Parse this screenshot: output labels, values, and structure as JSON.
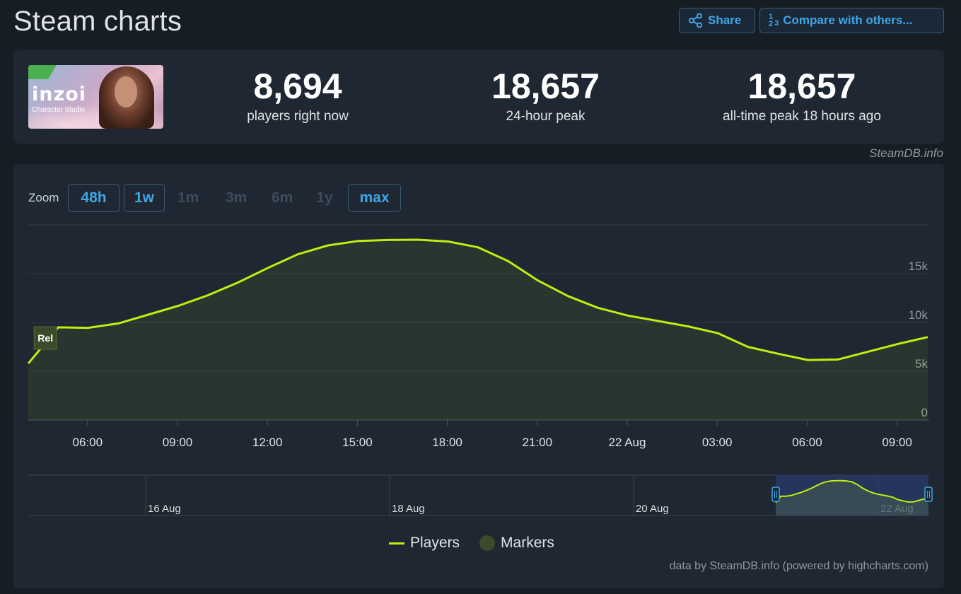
{
  "header": {
    "title": "Steam charts",
    "share_label": "Share",
    "compare_label": "Compare with others...",
    "compare_icon_top": "1",
    "compare_icon_bottom": "2",
    "compare_icon_side": "3"
  },
  "game": {
    "logo_text": "inzoi",
    "subtitle": "Character Studio"
  },
  "stats": [
    {
      "value": "8,694",
      "label": "players right now"
    },
    {
      "value": "18,657",
      "label": "24-hour peak"
    },
    {
      "value": "18,657",
      "label": "all-time peak 18 hours ago"
    }
  ],
  "credit_top": "SteamDB.info",
  "zoom": {
    "label": "Zoom",
    "buttons": [
      {
        "label": "48h",
        "state": "active"
      },
      {
        "label": "1w",
        "state": "active"
      },
      {
        "label": "1m",
        "state": "inactive"
      },
      {
        "label": "3m",
        "state": "inactive"
      },
      {
        "label": "6m",
        "state": "inactive"
      },
      {
        "label": "1y",
        "state": "inactive"
      },
      {
        "label": "max",
        "state": "active"
      }
    ]
  },
  "legend": {
    "players": "Players",
    "markers": "Markers"
  },
  "credit_bottom": "data by SteamDB.info (powered by highcharts.com)",
  "colors": {
    "line": "#beee11",
    "accent": "#3ea6e6",
    "marker": "#3c4a2c",
    "navigator_window": "#2a3b6e"
  },
  "chart_data": {
    "type": "line",
    "series": [
      {
        "name": "Players",
        "x": [
          "04:00",
          "05:00",
          "06:00",
          "07:00",
          "08:00",
          "09:00",
          "10:00",
          "11:00",
          "12:00",
          "13:00",
          "14:00",
          "15:00",
          "16:00",
          "17:00",
          "18:00",
          "19:00",
          "20:00",
          "21:00",
          "22:00",
          "23:00",
          "00:00",
          "01:00",
          "02:00",
          "03:00",
          "04:00",
          "05:00",
          "06:00",
          "07:00",
          "08:00",
          "09:00",
          "10:00"
        ],
        "values": [
          5800,
          9500,
          9450,
          9900,
          10800,
          11700,
          12800,
          14100,
          15600,
          17000,
          17900,
          18350,
          18450,
          18480,
          18300,
          17700,
          16300,
          14300,
          12700,
          11500,
          10700,
          10150,
          9600,
          8900,
          7500,
          6800,
          6150,
          6200,
          7000,
          7800,
          8500
        ]
      }
    ],
    "markers": [
      {
        "label": "Rel",
        "x": "04:30"
      }
    ],
    "x_tick_labels": [
      "06:00",
      "09:00",
      "12:00",
      "15:00",
      "18:00",
      "21:00",
      "22 Aug",
      "03:00",
      "06:00",
      "09:00"
    ],
    "y_tick_labels": [
      "0",
      "5k",
      "10k",
      "15k"
    ],
    "ylim": [
      0,
      20000
    ],
    "grid": true,
    "navigator_labels": [
      "16 Aug",
      "18 Aug",
      "20 Aug",
      "22 Aug"
    ],
    "legend_position": "bottom-center"
  }
}
